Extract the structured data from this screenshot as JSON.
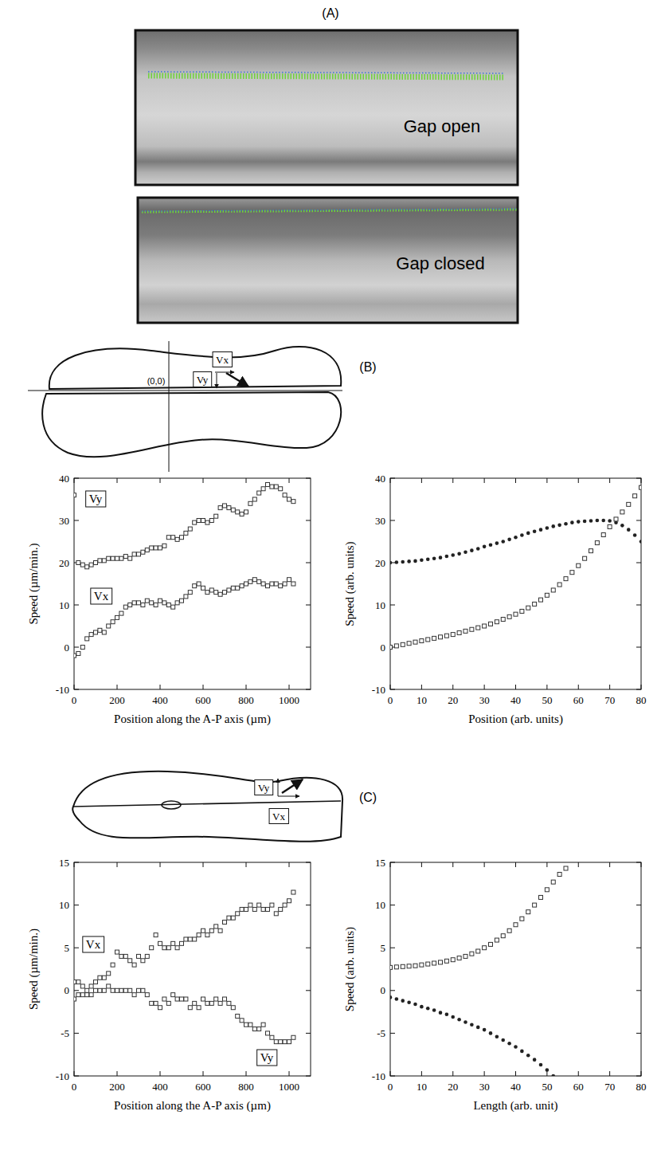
{
  "figure": {
    "panel_labels": [
      "(A)",
      "(B)",
      "(C)"
    ],
    "photo_labels": [
      "Gap open",
      "Gap closed"
    ],
    "schematic_B": {
      "origin": "(0,0)",
      "labels": [
        "Vx",
        "Vy"
      ]
    },
    "schematic_C": {
      "labels": [
        "Vy",
        "Vx"
      ]
    }
  },
  "chart_data": [
    {
      "type": "scatter",
      "x_label": "Position along the A-P axis (µm)",
      "y_label": "Speed (µm/min.)",
      "xlim": [
        0,
        1100
      ],
      "xticks": [
        0,
        200,
        400,
        600,
        800,
        1000
      ],
      "ylim": [
        -10,
        40
      ],
      "yticks": [
        -10,
        0,
        10,
        20,
        30,
        40
      ],
      "grid": false,
      "x": [
        0,
        20,
        40,
        60,
        80,
        100,
        120,
        140,
        160,
        180,
        200,
        220,
        240,
        260,
        280,
        300,
        320,
        340,
        360,
        380,
        400,
        420,
        440,
        460,
        480,
        500,
        520,
        540,
        560,
        580,
        600,
        620,
        640,
        660,
        680,
        700,
        720,
        740,
        760,
        780,
        800,
        820,
        840,
        860,
        880,
        900,
        920,
        940,
        960,
        980,
        1000,
        1020
      ],
      "series": [
        {
          "name": "Vy",
          "color": "#333333",
          "marker": "square-open",
          "values": [
            36,
            20,
            19.5,
            19,
            19.5,
            20,
            20.5,
            20.5,
            21,
            21,
            21,
            21,
            21.5,
            21,
            22,
            22,
            22.5,
            23,
            23.5,
            23.5,
            23.5,
            24,
            26,
            26,
            25.5,
            26,
            27,
            28,
            29.5,
            30,
            30,
            29.5,
            30,
            31,
            33,
            33.5,
            33,
            32.5,
            32,
            31.5,
            32,
            34,
            35,
            36.5,
            37.5,
            38.5,
            38,
            38,
            37.5,
            36,
            35,
            34.5
          ]
        },
        {
          "name": "Vx",
          "color": "#333333",
          "marker": "square-open",
          "values": [
            -2,
            -1.5,
            0,
            2,
            3,
            3.5,
            4,
            3.5,
            5,
            6,
            7,
            8,
            9.5,
            10,
            10.5,
            10.5,
            10,
            11,
            10.5,
            10,
            11,
            10.5,
            10,
            9.5,
            10.5,
            11,
            12,
            13,
            14.5,
            15,
            14,
            13,
            13.5,
            13,
            12.5,
            13,
            13.5,
            14,
            14,
            14.5,
            15,
            15.5,
            16,
            15.5,
            15,
            14.5,
            15,
            15,
            14.5,
            15,
            16,
            15
          ]
        }
      ]
    },
    {
      "type": "scatter",
      "x_label": "Position (arb. units)",
      "y_label": "Speed (arb. units)",
      "xlim": [
        0,
        80
      ],
      "xticks": [
        0,
        10,
        20,
        30,
        40,
        50,
        60,
        70,
        80
      ],
      "ylim": [
        -10,
        40
      ],
      "yticks": [
        -10,
        0,
        10,
        20,
        30,
        40
      ],
      "grid": false,
      "x": [
        0,
        2,
        4,
        6,
        8,
        10,
        12,
        14,
        16,
        18,
        20,
        22,
        24,
        26,
        28,
        30,
        32,
        34,
        36,
        38,
        40,
        42,
        44,
        46,
        48,
        50,
        52,
        54,
        56,
        58,
        60,
        62,
        64,
        66,
        68,
        70,
        72,
        74,
        76,
        78,
        80
      ],
      "series": [
        {
          "color": "#222222",
          "marker": "circle-filled",
          "values": [
            20.0,
            20.1,
            20.2,
            20.3,
            20.4,
            20.6,
            20.8,
            21.0,
            21.2,
            21.5,
            21.8,
            22.1,
            22.5,
            22.9,
            23.3,
            23.8,
            24.2,
            24.6,
            25.0,
            25.5,
            26.0,
            26.5,
            27.0,
            27.4,
            27.8,
            28.2,
            28.6,
            28.9,
            29.2,
            29.5,
            29.7,
            29.8,
            29.9,
            30.0,
            30.0,
            29.9,
            29.5,
            28.8,
            27.8,
            26.5,
            25.0
          ]
        },
        {
          "color": "#333333",
          "marker": "square-open",
          "values": [
            0.0,
            0.3,
            0.6,
            0.9,
            1.2,
            1.5,
            1.8,
            2.1,
            2.4,
            2.7,
            3.0,
            3.4,
            3.8,
            4.2,
            4.6,
            5.0,
            5.5,
            6.0,
            6.6,
            7.2,
            7.8,
            8.5,
            9.3,
            10.2,
            11.2,
            12.3,
            13.5,
            14.8,
            16.2,
            17.7,
            19.3,
            21.0,
            22.8,
            24.7,
            26.6,
            28.5,
            30.3,
            32.0,
            33.8,
            35.8,
            37.8
          ]
        }
      ]
    },
    {
      "type": "scatter",
      "x_label": "Position along the A-P axis (µm)",
      "y_label": "Speed (µm/min.)",
      "xlim": [
        0,
        1100
      ],
      "xticks": [
        0,
        200,
        400,
        600,
        800,
        1000
      ],
      "ylim": [
        -10,
        15
      ],
      "yticks": [
        -10,
        -5,
        0,
        5,
        10,
        15
      ],
      "grid": false,
      "x": [
        0,
        20,
        40,
        60,
        80,
        100,
        120,
        140,
        160,
        180,
        200,
        220,
        240,
        260,
        280,
        300,
        320,
        340,
        360,
        380,
        400,
        420,
        440,
        460,
        480,
        500,
        520,
        540,
        560,
        580,
        600,
        620,
        640,
        660,
        680,
        700,
        720,
        740,
        760,
        780,
        800,
        820,
        840,
        860,
        880,
        900,
        920,
        940,
        960,
        980,
        1000,
        1020
      ],
      "series": [
        {
          "name": "Vx",
          "color": "#333333",
          "marker": "square-open",
          "values": [
            1,
            1,
            0.5,
            0,
            0.5,
            1,
            1.5,
            1.5,
            2,
            3,
            4.5,
            4,
            4,
            3.5,
            3,
            4,
            3.5,
            4,
            5,
            6.5,
            5.5,
            5,
            5,
            5.5,
            5,
            5.5,
            6,
            6,
            6,
            6.5,
            7,
            6.5,
            7,
            7.5,
            7,
            8,
            8.5,
            8.5,
            9,
            9.5,
            9.5,
            10,
            9.5,
            10,
            9.5,
            9.5,
            10,
            9,
            9.5,
            10,
            10.5,
            11.5
          ]
        },
        {
          "name": "Vy",
          "color": "#333333",
          "marker": "square-open",
          "values": [
            -1,
            -0.5,
            -0.5,
            -0.5,
            -0.5,
            0,
            0,
            0,
            0.5,
            0,
            0,
            0,
            0,
            0,
            -0.5,
            0,
            0,
            -0.5,
            -1.5,
            -1.5,
            -2,
            -1,
            -1.5,
            -0.5,
            -1,
            -1,
            -1,
            -2,
            -1.5,
            -2,
            -1,
            -1.5,
            -1.5,
            -1,
            -1.5,
            -1,
            -1.5,
            -2,
            -3,
            -3.5,
            -4,
            -4,
            -4.5,
            -4.5,
            -4,
            -5,
            -5.5,
            -6,
            -6,
            -6,
            -6,
            -5.5
          ]
        }
      ]
    },
    {
      "type": "scatter",
      "x_label": "Length (arb. unit)",
      "y_label": "Speed (arb. units)",
      "xlim": [
        0,
        80
      ],
      "xticks": [
        0,
        10,
        20,
        30,
        40,
        50,
        60,
        70,
        80
      ],
      "ylim": [
        -10,
        15
      ],
      "yticks": [
        -10,
        -5,
        0,
        5,
        10,
        15
      ],
      "grid": false,
      "series": [
        {
          "color": "#333333",
          "marker": "square-open",
          "x": [
            0,
            2,
            4,
            6,
            8,
            10,
            12,
            14,
            16,
            18,
            20,
            22,
            24,
            26,
            28,
            30,
            32,
            34,
            36,
            38,
            40,
            42,
            44,
            46,
            48,
            50,
            52,
            54,
            56
          ],
          "values": [
            2.7,
            2.75,
            2.8,
            2.85,
            2.9,
            3.0,
            3.1,
            3.2,
            3.3,
            3.45,
            3.6,
            3.8,
            4.0,
            4.3,
            4.6,
            5.0,
            5.4,
            5.9,
            6.4,
            7.0,
            7.7,
            8.4,
            9.2,
            10.0,
            10.9,
            11.8,
            12.7,
            13.6,
            14.3
          ]
        },
        {
          "color": "#222222",
          "marker": "circle-filled",
          "x": [
            0,
            2,
            4,
            6,
            8,
            10,
            12,
            14,
            16,
            18,
            20,
            22,
            24,
            26,
            28,
            30,
            32,
            34,
            36,
            38,
            40,
            42,
            44,
            46,
            48,
            50,
            52
          ],
          "values": [
            -0.8,
            -1.0,
            -1.2,
            -1.4,
            -1.6,
            -1.9,
            -2.1,
            -2.3,
            -2.6,
            -2.8,
            -3.1,
            -3.4,
            -3.7,
            -4.0,
            -4.3,
            -4.6,
            -5.0,
            -5.4,
            -5.8,
            -6.2,
            -6.6,
            -7.1,
            -7.6,
            -8.1,
            -8.7,
            -9.3,
            -10.0
          ]
        }
      ]
    }
  ]
}
